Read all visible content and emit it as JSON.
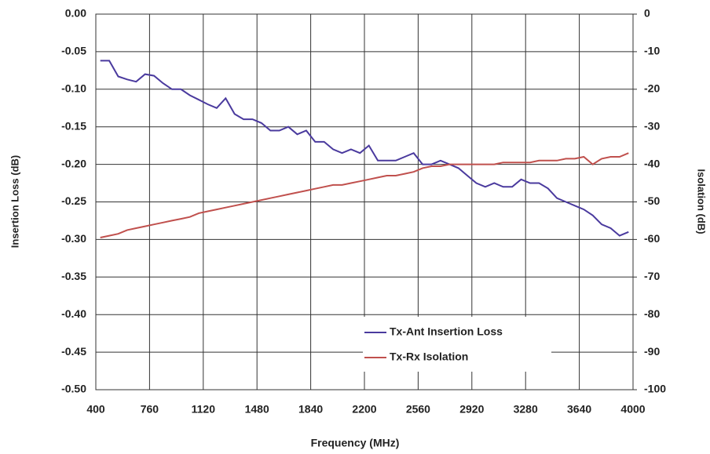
{
  "chart_data": {
    "type": "line",
    "xlabel": "Frequency (MHz)",
    "ylabel": "Insertion Loss (dB)",
    "y2label": "Isolation (dB)",
    "xlim": [
      400,
      4000
    ],
    "xticks": [
      400,
      760,
      1120,
      1480,
      1840,
      2200,
      2560,
      2920,
      3280,
      3640,
      4000
    ],
    "ylim": [
      -0.5,
      0
    ],
    "yticks": [
      {
        "value": 0,
        "label": "0.00"
      },
      -0.05,
      {
        "value": -0.1,
        "label": "-0.10"
      },
      -0.15,
      {
        "value": -0.2,
        "label": "-0.20"
      },
      -0.25,
      {
        "value": -0.3,
        "label": "-0.30"
      },
      -0.35,
      {
        "value": -0.4,
        "label": "-0.40"
      },
      -0.45,
      {
        "value": -0.5,
        "label": "-0.50"
      }
    ],
    "y2lim": [
      -100,
      0
    ],
    "y2ticks": [
      0,
      -10,
      -20,
      -30,
      -40,
      -50,
      -60,
      -70,
      -80,
      -90,
      -100
    ],
    "grid": true,
    "legend": "lower right",
    "x": [
      430,
      490,
      550,
      610,
      670,
      730,
      790,
      850,
      910,
      970,
      1030,
      1090,
      1150,
      1210,
      1270,
      1330,
      1390,
      1450,
      1510,
      1570,
      1630,
      1690,
      1750,
      1810,
      1870,
      1930,
      1990,
      2050,
      2110,
      2170,
      2230,
      2290,
      2350,
      2410,
      2470,
      2530,
      2590,
      2650,
      2710,
      2770,
      2830,
      2890,
      2950,
      3010,
      3070,
      3130,
      3190,
      3250,
      3310,
      3370,
      3430,
      3490,
      3550,
      3610,
      3670,
      3730,
      3790,
      3850,
      3910,
      3970
    ],
    "series": [
      {
        "name": "Tx-Ant Insertion Loss",
        "color": "#4a3a9e",
        "values": [
          -0.062,
          -0.062,
          -0.083,
          -0.087,
          -0.09,
          -0.08,
          -0.082,
          -0.092,
          -0.1,
          -0.1,
          -0.108,
          -0.114,
          -0.12,
          -0.125,
          -0.112,
          -0.133,
          -0.14,
          -0.14,
          -0.145,
          -0.155,
          -0.155,
          -0.15,
          -0.16,
          -0.155,
          -0.17,
          -0.17,
          -0.18,
          -0.185,
          -0.18,
          -0.185,
          -0.175,
          -0.195,
          -0.195,
          -0.195,
          -0.19,
          -0.185,
          -0.2,
          -0.2,
          -0.195,
          -0.2,
          -0.205,
          -0.215,
          -0.225,
          -0.23,
          -0.225,
          -0.23,
          -0.23,
          -0.22,
          -0.225,
          -0.225,
          -0.232,
          -0.245,
          -0.25,
          -0.255,
          -0.26,
          -0.268,
          -0.28,
          -0.285,
          -0.295,
          -0.29
        ]
      },
      {
        "name": "Tx-Rx Isolation",
        "color": "#c0504d",
        "axis": "y2",
        "values": [
          -59.5,
          -59,
          -58.5,
          -57.5,
          -57,
          -56.5,
          -56,
          -55.5,
          -55,
          -54.5,
          -54,
          -53,
          -52.5,
          -52,
          -51.5,
          -51,
          -50.5,
          -50,
          -49.5,
          -49,
          -48.5,
          -48,
          -47.5,
          -47,
          -46.5,
          -46,
          -45.5,
          -45.5,
          -45,
          -44.5,
          -44,
          -43.5,
          -43,
          -43,
          -42.5,
          -42,
          -41,
          -40.5,
          -40.5,
          -40,
          -40,
          -40,
          -40,
          -40,
          -40,
          -39.5,
          -39.5,
          -39.5,
          -39.5,
          -39,
          -39,
          -39,
          -38.5,
          -38.5,
          -38,
          -40,
          -38.5,
          -38,
          -38,
          -37
        ]
      }
    ]
  }
}
